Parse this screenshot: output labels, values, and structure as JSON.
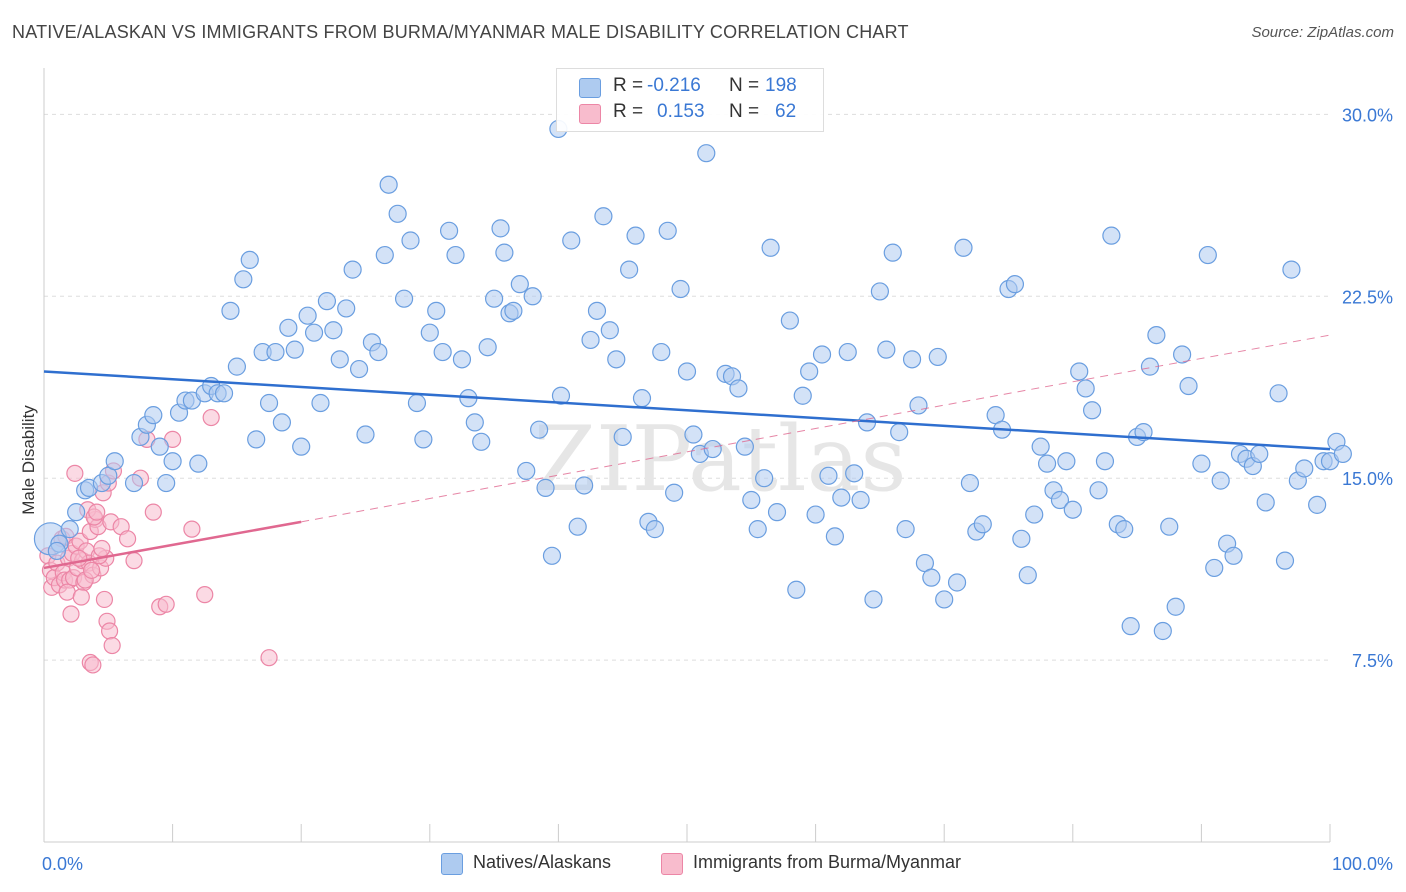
{
  "header": {
    "title": "NATIVE/ALASKAN VS IMMIGRANTS FROM BURMA/MYANMAR MALE DISABILITY CORRELATION CHART",
    "source": "Source: ZipAtlas.com"
  },
  "watermark": "ZIPatlas",
  "legend_stats": {
    "rows": [
      {
        "r_label": "R =",
        "r_value": "-0.216",
        "n_label": "N =",
        "n_value": "198"
      },
      {
        "r_label": "R =",
        "r_value": "0.153",
        "n_label": "N =",
        "n_value": "62"
      }
    ]
  },
  "colors": {
    "blue_fill": "#aecbf0",
    "blue_stroke": "#6a9ee0",
    "blue_line": "#2f6fcf",
    "pink_fill": "#f8bccd",
    "pink_stroke": "#ec86a6",
    "pink_line": "#e06890",
    "axis_text": "#3a78d4",
    "grid": "#dddddd"
  },
  "chart_data": {
    "type": "scatter",
    "title": "NATIVE/ALASKAN VS IMMIGRANTS FROM BURMA/MYANMAR MALE DISABILITY CORRELATION CHART",
    "xlabel": "",
    "ylabel": "Male Disability",
    "xlim": [
      0,
      100
    ],
    "ylim": [
      0,
      31.5
    ],
    "x_tick_labels": [
      "0.0%",
      "100.0%"
    ],
    "y_ticks": [
      7.5,
      15.0,
      22.5,
      30.0
    ],
    "y_tick_labels": [
      "7.5%",
      "15.0%",
      "22.5%",
      "30.0%"
    ],
    "grid": true,
    "legend_position": "bottom",
    "series": [
      {
        "name": "Natives/Alaskans",
        "trend": {
          "x": [
            0,
            100
          ],
          "y": [
            19.4,
            16.2
          ]
        },
        "points": [
          [
            0.5,
            12.5
          ],
          [
            1.2,
            12.3
          ],
          [
            1.0,
            12.0
          ],
          [
            2.0,
            12.9
          ],
          [
            2.5,
            13.6
          ],
          [
            3.2,
            14.5
          ],
          [
            3.5,
            14.6
          ],
          [
            4.5,
            14.8
          ],
          [
            5.0,
            15.1
          ],
          [
            5.5,
            15.7
          ],
          [
            7.5,
            16.7
          ],
          [
            8.0,
            17.2
          ],
          [
            8.5,
            17.6
          ],
          [
            7.0,
            14.8
          ],
          [
            9.0,
            16.3
          ],
          [
            9.5,
            14.8
          ],
          [
            10.0,
            15.7
          ],
          [
            10.5,
            17.7
          ],
          [
            11.0,
            18.2
          ],
          [
            11.5,
            18.2
          ],
          [
            12.0,
            15.6
          ],
          [
            12.5,
            18.5
          ],
          [
            13.0,
            18.8
          ],
          [
            13.5,
            18.5
          ],
          [
            14.0,
            18.5
          ],
          [
            14.5,
            21.9
          ],
          [
            15.0,
            19.6
          ],
          [
            15.5,
            23.2
          ],
          [
            16.0,
            24.0
          ],
          [
            16.5,
            16.6
          ],
          [
            17.0,
            20.2
          ],
          [
            17.5,
            18.1
          ],
          [
            18.0,
            20.2
          ],
          [
            18.5,
            17.3
          ],
          [
            19.0,
            21.2
          ],
          [
            19.5,
            20.3
          ],
          [
            20.0,
            16.3
          ],
          [
            20.5,
            21.7
          ],
          [
            21.0,
            21.0
          ],
          [
            21.5,
            18.1
          ],
          [
            22.0,
            22.3
          ],
          [
            22.5,
            21.1
          ],
          [
            23.0,
            19.9
          ],
          [
            23.5,
            22.0
          ],
          [
            24.0,
            23.6
          ],
          [
            24.5,
            19.5
          ],
          [
            25.0,
            16.8
          ],
          [
            25.5,
            20.6
          ],
          [
            26.0,
            20.2
          ],
          [
            26.5,
            24.2
          ],
          [
            26.8,
            27.1
          ],
          [
            27.5,
            25.9
          ],
          [
            28.0,
            22.4
          ],
          [
            28.5,
            24.8
          ],
          [
            29.0,
            18.1
          ],
          [
            29.5,
            16.6
          ],
          [
            30.0,
            21.0
          ],
          [
            30.5,
            21.9
          ],
          [
            31.0,
            20.2
          ],
          [
            31.5,
            25.2
          ],
          [
            32.0,
            24.2
          ],
          [
            32.5,
            19.9
          ],
          [
            33.0,
            18.3
          ],
          [
            33.5,
            17.3
          ],
          [
            34.0,
            16.5
          ],
          [
            34.5,
            20.4
          ],
          [
            35.0,
            22.4
          ],
          [
            35.5,
            25.3
          ],
          [
            35.8,
            24.3
          ],
          [
            36.2,
            21.8
          ],
          [
            36.5,
            21.9
          ],
          [
            37.0,
            23.0
          ],
          [
            37.5,
            15.3
          ],
          [
            38.0,
            22.5
          ],
          [
            38.5,
            17.0
          ],
          [
            39.0,
            14.6
          ],
          [
            39.5,
            11.8
          ],
          [
            40.0,
            29.4
          ],
          [
            40.2,
            18.4
          ],
          [
            41.0,
            24.8
          ],
          [
            41.5,
            13.0
          ],
          [
            42.0,
            14.7
          ],
          [
            42.5,
            20.7
          ],
          [
            43.0,
            21.9
          ],
          [
            43.5,
            25.8
          ],
          [
            44.0,
            21.1
          ],
          [
            44.5,
            19.9
          ],
          [
            45.0,
            16.7
          ],
          [
            45.5,
            23.6
          ],
          [
            46.0,
            25.0
          ],
          [
            46.5,
            18.3
          ],
          [
            47.0,
            13.2
          ],
          [
            47.5,
            12.9
          ],
          [
            48.0,
            20.2
          ],
          [
            48.5,
            25.2
          ],
          [
            49.0,
            14.4
          ],
          [
            49.5,
            22.8
          ],
          [
            50.0,
            19.4
          ],
          [
            50.5,
            16.8
          ],
          [
            51.0,
            16.0
          ],
          [
            51.5,
            28.4
          ],
          [
            52.0,
            16.2
          ],
          [
            53.0,
            19.3
          ],
          [
            53.5,
            19.2
          ],
          [
            54.0,
            18.7
          ],
          [
            54.5,
            16.3
          ],
          [
            55.0,
            14.1
          ],
          [
            55.5,
            12.9
          ],
          [
            56.0,
            15.0
          ],
          [
            56.5,
            24.5
          ],
          [
            57.0,
            13.6
          ],
          [
            58.0,
            21.5
          ],
          [
            58.5,
            10.4
          ],
          [
            59.0,
            18.4
          ],
          [
            59.5,
            19.4
          ],
          [
            60.0,
            13.5
          ],
          [
            60.5,
            20.1
          ],
          [
            61.0,
            15.1
          ],
          [
            61.5,
            12.6
          ],
          [
            62.0,
            14.2
          ],
          [
            62.5,
            20.2
          ],
          [
            63.0,
            15.2
          ],
          [
            63.5,
            14.1
          ],
          [
            64.0,
            17.3
          ],
          [
            64.5,
            10.0
          ],
          [
            65.0,
            22.7
          ],
          [
            65.5,
            20.3
          ],
          [
            66.0,
            24.3
          ],
          [
            66.5,
            16.9
          ],
          [
            67.0,
            12.9
          ],
          [
            67.5,
            19.9
          ],
          [
            68.0,
            18.0
          ],
          [
            68.5,
            11.5
          ],
          [
            69.0,
            10.9
          ],
          [
            69.5,
            20.0
          ],
          [
            70.0,
            10.0
          ],
          [
            71.0,
            10.7
          ],
          [
            71.5,
            24.5
          ],
          [
            72.0,
            14.8
          ],
          [
            72.5,
            12.8
          ],
          [
            73.0,
            13.1
          ],
          [
            74.0,
            17.6
          ],
          [
            74.5,
            17.0
          ],
          [
            75.0,
            22.8
          ],
          [
            75.5,
            23.0
          ],
          [
            76.0,
            12.5
          ],
          [
            76.5,
            11.0
          ],
          [
            77.0,
            13.5
          ],
          [
            77.5,
            16.3
          ],
          [
            78.0,
            15.6
          ],
          [
            78.5,
            14.5
          ],
          [
            79.0,
            14.1
          ],
          [
            79.5,
            15.7
          ],
          [
            80.0,
            13.7
          ],
          [
            80.5,
            19.4
          ],
          [
            81.0,
            18.7
          ],
          [
            81.5,
            17.8
          ],
          [
            82.0,
            14.5
          ],
          [
            82.5,
            15.7
          ],
          [
            83.0,
            25.0
          ],
          [
            83.5,
            13.1
          ],
          [
            84.0,
            12.9
          ],
          [
            84.5,
            8.9
          ],
          [
            85.0,
            16.7
          ],
          [
            85.5,
            16.9
          ],
          [
            86.0,
            19.6
          ],
          [
            86.5,
            20.9
          ],
          [
            87.0,
            8.7
          ],
          [
            87.5,
            13.0
          ],
          [
            88.0,
            9.7
          ],
          [
            88.5,
            20.1
          ],
          [
            89.0,
            18.8
          ],
          [
            90.0,
            15.6
          ],
          [
            90.5,
            24.2
          ],
          [
            91.0,
            11.3
          ],
          [
            91.5,
            14.9
          ],
          [
            92.0,
            12.3
          ],
          [
            92.5,
            11.8
          ],
          [
            93.0,
            16.0
          ],
          [
            93.5,
            15.8
          ],
          [
            94.0,
            15.5
          ],
          [
            94.5,
            16.0
          ],
          [
            95.0,
            14.0
          ],
          [
            96.0,
            18.5
          ],
          [
            96.5,
            11.6
          ],
          [
            97.0,
            23.6
          ],
          [
            97.5,
            14.9
          ],
          [
            98.0,
            15.4
          ],
          [
            99.0,
            13.9
          ],
          [
            99.5,
            15.7
          ],
          [
            100.0,
            15.7
          ],
          [
            100.5,
            16.5
          ],
          [
            101.0,
            16.0
          ]
        ]
      },
      {
        "name": "Immigrants from Burma/Myanmar",
        "trend": {
          "x": [
            0,
            20
          ],
          "y": [
            11.3,
            13.2
          ]
        },
        "trend_extended": {
          "x": [
            20,
            100
          ],
          "y": [
            13.2,
            20.9
          ]
        },
        "points": [
          [
            0.3,
            11.8
          ],
          [
            0.5,
            11.2
          ],
          [
            0.6,
            10.5
          ],
          [
            0.8,
            10.9
          ],
          [
            1.0,
            11.5
          ],
          [
            1.2,
            10.6
          ],
          [
            1.4,
            12.5
          ],
          [
            1.5,
            11.1
          ],
          [
            1.6,
            10.8
          ],
          [
            1.7,
            12.6
          ],
          [
            1.9,
            11.7
          ],
          [
            2.0,
            10.8
          ],
          [
            2.2,
            11.9
          ],
          [
            2.3,
            10.9
          ],
          [
            2.5,
            12.2
          ],
          [
            2.6,
            11.3
          ],
          [
            2.8,
            12.4
          ],
          [
            3.0,
            11.6
          ],
          [
            3.1,
            10.7
          ],
          [
            3.3,
            12.0
          ],
          [
            3.5,
            11.5
          ],
          [
            3.6,
            12.8
          ],
          [
            3.8,
            11.0
          ],
          [
            4.0,
            13.3
          ],
          [
            4.2,
            13.0
          ],
          [
            4.4,
            11.3
          ],
          [
            4.6,
            14.4
          ],
          [
            4.8,
            11.7
          ],
          [
            5.0,
            14.8
          ],
          [
            5.2,
            13.2
          ],
          [
            5.4,
            15.3
          ],
          [
            1.8,
            10.3
          ],
          [
            2.1,
            9.4
          ],
          [
            2.4,
            15.2
          ],
          [
            2.7,
            11.7
          ],
          [
            2.9,
            10.1
          ],
          [
            3.2,
            10.8
          ],
          [
            3.4,
            13.7
          ],
          [
            3.7,
            11.2
          ],
          [
            3.9,
            13.4
          ],
          [
            4.1,
            13.6
          ],
          [
            4.3,
            11.8
          ],
          [
            4.5,
            12.1
          ],
          [
            4.7,
            10.0
          ],
          [
            4.9,
            9.1
          ],
          [
            5.1,
            8.7
          ],
          [
            5.3,
            8.1
          ],
          [
            3.6,
            7.4
          ],
          [
            3.8,
            7.3
          ],
          [
            6.0,
            13.0
          ],
          [
            6.5,
            12.5
          ],
          [
            7.0,
            11.6
          ],
          [
            7.5,
            15.0
          ],
          [
            8.0,
            16.6
          ],
          [
            8.5,
            13.6
          ],
          [
            9.0,
            9.7
          ],
          [
            9.5,
            9.8
          ],
          [
            10.0,
            16.6
          ],
          [
            11.5,
            12.9
          ],
          [
            12.5,
            10.2
          ],
          [
            13.0,
            17.5
          ],
          [
            17.5,
            7.6
          ]
        ]
      }
    ]
  },
  "axes": {
    "ylabel": "Male Disability",
    "x_left": "0.0%",
    "x_right": "100.0%"
  }
}
